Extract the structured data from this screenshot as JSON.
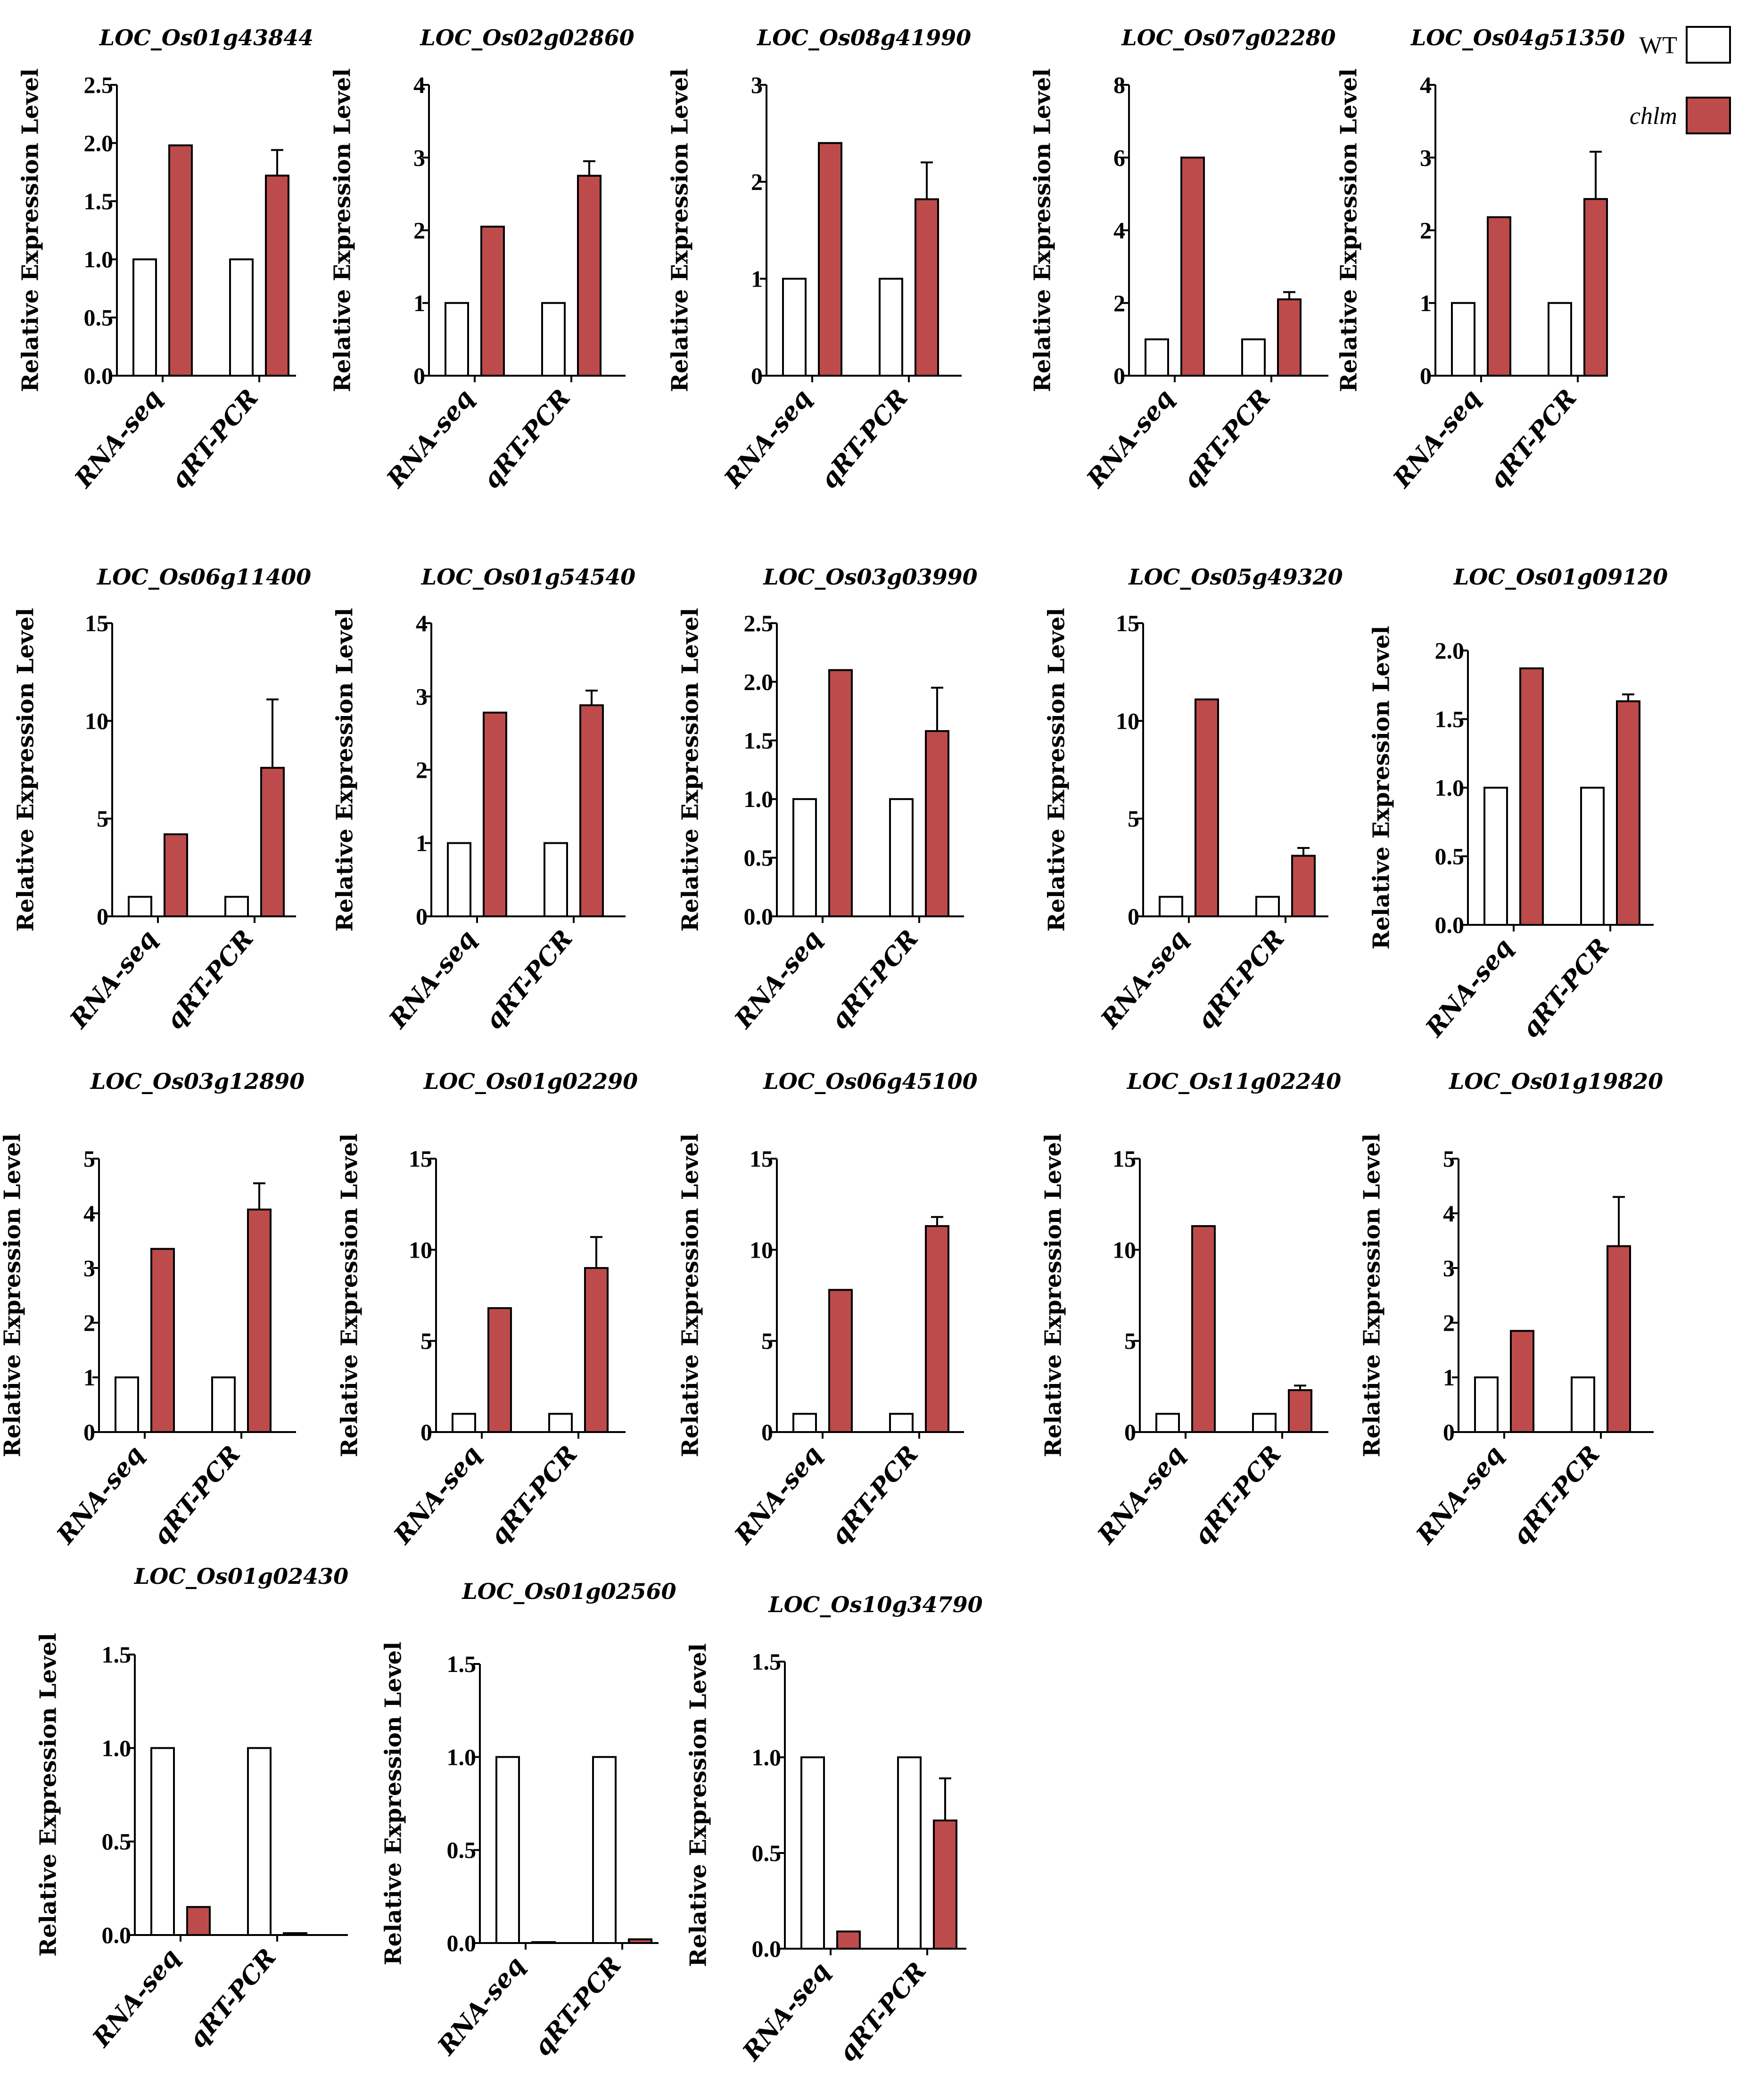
{
  "colors": {
    "wt": "#ffffff",
    "chlm": "#bd4b4b",
    "stroke": "#000000"
  },
  "legend": [
    {
      "label": "WT",
      "color": "#ffffff",
      "italic": false
    },
    {
      "label": "chlm",
      "color": "#bd4b4b",
      "italic": true
    }
  ],
  "chart_data": [
    {
      "type": "bar",
      "title": "LOC_Os01g43844",
      "ylabel": "Relative Expression Level",
      "categories": [
        "RNA-seq",
        "qRT-PCR"
      ],
      "ylim": [
        0,
        2.5
      ],
      "ytick_labels": [
        "0.0",
        "0.5",
        "1.0",
        "1.5",
        "2.0",
        "2.5"
      ],
      "series": [
        {
          "name": "WT",
          "values": [
            1.0,
            1.0
          ]
        },
        {
          "name": "chlm",
          "values": [
            1.98,
            1.72
          ],
          "errors": [
            0,
            0.22
          ]
        }
      ]
    },
    {
      "type": "bar",
      "title": "LOC_Os02g02860",
      "ylabel": "Relative Expression Level",
      "categories": [
        "RNA-seq",
        "qRT-PCR"
      ],
      "ylim": [
        0,
        4
      ],
      "ytick_labels": [
        "0",
        "1",
        "2",
        "3",
        "4"
      ],
      "series": [
        {
          "name": "WT",
          "values": [
            1.0,
            1.0
          ]
        },
        {
          "name": "chlm",
          "values": [
            2.05,
            2.75
          ],
          "errors": [
            0,
            0.2
          ]
        }
      ]
    },
    {
      "type": "bar",
      "title": "LOC_Os08g41990",
      "ylabel": "Relative Expression Level",
      "categories": [
        "RNA-seq",
        "qRT-PCR"
      ],
      "ylim": [
        0,
        3
      ],
      "ytick_labels": [
        "0",
        "1",
        "2",
        "3"
      ],
      "series": [
        {
          "name": "WT",
          "values": [
            1.0,
            1.0
          ]
        },
        {
          "name": "chlm",
          "values": [
            2.4,
            1.82
          ],
          "errors": [
            0,
            0.38
          ]
        }
      ]
    },
    {
      "type": "bar",
      "title": "LOC_Os07g02280",
      "ylabel": "Relative Expression Level",
      "categories": [
        "RNA-seq",
        "qRT-PCR"
      ],
      "ylim": [
        0,
        8
      ],
      "ytick_labels": [
        "0",
        "2",
        "4",
        "6",
        "8"
      ],
      "series": [
        {
          "name": "WT",
          "values": [
            1.0,
            1.0
          ]
        },
        {
          "name": "chlm",
          "values": [
            6.0,
            2.1
          ],
          "errors": [
            0,
            0.2
          ]
        }
      ]
    },
    {
      "type": "bar",
      "title": "LOC_Os04g51350",
      "ylabel": "Relative Expression Level",
      "categories": [
        "RNA-seq",
        "qRT-PCR"
      ],
      "ylim": [
        0,
        4
      ],
      "ytick_labels": [
        "0",
        "1",
        "2",
        "3",
        "4"
      ],
      "series": [
        {
          "name": "WT",
          "values": [
            1.0,
            1.0
          ]
        },
        {
          "name": "chlm",
          "values": [
            2.18,
            2.43
          ],
          "errors": [
            0,
            0.65
          ]
        }
      ]
    },
    {
      "type": "bar",
      "title": "LOC_Os06g11400",
      "ylabel": "Relative Expression Level",
      "categories": [
        "RNA-seq",
        "qRT-PCR"
      ],
      "ylim": [
        0,
        15
      ],
      "ytick_labels": [
        "0",
        "5",
        "10",
        "15"
      ],
      "series": [
        {
          "name": "WT",
          "values": [
            1.0,
            1.0
          ]
        },
        {
          "name": "chlm",
          "values": [
            4.2,
            7.6
          ],
          "errors": [
            0,
            3.5
          ]
        }
      ]
    },
    {
      "type": "bar",
      "title": "LOC_Os01g54540",
      "ylabel": "Relative Expression Level",
      "categories": [
        "RNA-seq",
        "qRT-PCR"
      ],
      "ylim": [
        0,
        4
      ],
      "ytick_labels": [
        "0",
        "1",
        "2",
        "3",
        "4"
      ],
      "series": [
        {
          "name": "WT",
          "values": [
            1.0,
            1.0
          ]
        },
        {
          "name": "chlm",
          "values": [
            2.78,
            2.88
          ],
          "errors": [
            0,
            0.2
          ]
        }
      ]
    },
    {
      "type": "bar",
      "title": "LOC_Os03g03990",
      "ylabel": "Relative Expression Level",
      "categories": [
        "RNA-seq",
        "qRT-PCR"
      ],
      "ylim": [
        0,
        2.5
      ],
      "ytick_labels": [
        "0.0",
        "0.5",
        "1.0",
        "1.5",
        "2.0",
        "2.5"
      ],
      "series": [
        {
          "name": "WT",
          "values": [
            1.0,
            1.0
          ]
        },
        {
          "name": "chlm",
          "values": [
            2.1,
            1.58
          ],
          "errors": [
            0,
            0.37
          ]
        }
      ]
    },
    {
      "type": "bar",
      "title": "LOC_Os05g49320",
      "ylabel": "Relative Expression Level",
      "categories": [
        "RNA-seq",
        "qRT-PCR"
      ],
      "ylim": [
        0,
        15
      ],
      "ytick_labels": [
        "0",
        "5",
        "10",
        "15"
      ],
      "series": [
        {
          "name": "WT",
          "values": [
            1.0,
            1.0
          ]
        },
        {
          "name": "chlm",
          "values": [
            11.1,
            3.1
          ],
          "errors": [
            0,
            0.4
          ]
        }
      ]
    },
    {
      "type": "bar",
      "title": "LOC_Os01g09120",
      "ylabel": "Relative Expression Level",
      "categories": [
        "RNA-seq",
        "qRT-PCR"
      ],
      "ylim": [
        0,
        2.0
      ],
      "ytick_labels": [
        "0.0",
        "0.5",
        "1.0",
        "1.5",
        "2.0"
      ],
      "series": [
        {
          "name": "WT",
          "values": [
            1.0,
            1.0
          ]
        },
        {
          "name": "chlm",
          "values": [
            1.87,
            1.63
          ],
          "errors": [
            0,
            0.05
          ]
        }
      ]
    },
    {
      "type": "bar",
      "title": "LOC_Os03g12890",
      "ylabel": "Relative Expression Level",
      "categories": [
        "RNA-seq",
        "qRT-PCR"
      ],
      "ylim": [
        0,
        5
      ],
      "ytick_labels": [
        "0",
        "1",
        "2",
        "3",
        "4",
        "5"
      ],
      "series": [
        {
          "name": "WT",
          "values": [
            1.0,
            1.0
          ]
        },
        {
          "name": "chlm",
          "values": [
            3.35,
            4.07
          ],
          "errors": [
            0,
            0.48
          ]
        }
      ]
    },
    {
      "type": "bar",
      "title": "LOC_Os01g02290",
      "ylabel": "Relative Expression Level",
      "categories": [
        "RNA-seq",
        "qRT-PCR"
      ],
      "ylim": [
        0,
        15
      ],
      "ytick_labels": [
        "0",
        "5",
        "10",
        "15"
      ],
      "series": [
        {
          "name": "WT",
          "values": [
            1.0,
            1.0
          ]
        },
        {
          "name": "chlm",
          "values": [
            6.8,
            9.0
          ],
          "errors": [
            0,
            1.7
          ]
        }
      ]
    },
    {
      "type": "bar",
      "title": "LOC_Os06g45100",
      "ylabel": "Relative Expression Level",
      "categories": [
        "RNA-seq",
        "qRT-PCR"
      ],
      "ylim": [
        0,
        15
      ],
      "ytick_labels": [
        "0",
        "5",
        "10",
        "15"
      ],
      "series": [
        {
          "name": "WT",
          "values": [
            1.0,
            1.0
          ]
        },
        {
          "name": "chlm",
          "values": [
            7.8,
            11.3
          ],
          "errors": [
            0,
            0.5
          ]
        }
      ]
    },
    {
      "type": "bar",
      "title": "LOC_Os11g02240",
      "ylabel": "Relative Expression Level",
      "categories": [
        "RNA-seq",
        "qRT-PCR"
      ],
      "ylim": [
        0,
        15
      ],
      "ytick_labels": [
        "0",
        "5",
        "10",
        "15"
      ],
      "series": [
        {
          "name": "WT",
          "values": [
            1.0,
            1.0
          ]
        },
        {
          "name": "chlm",
          "values": [
            11.3,
            2.3
          ],
          "errors": [
            0,
            0.25
          ]
        }
      ]
    },
    {
      "type": "bar",
      "title": "LOC_Os01g19820",
      "ylabel": "Relative Expression Level",
      "categories": [
        "RNA-seq",
        "qRT-PCR"
      ],
      "ylim": [
        0,
        5
      ],
      "ytick_labels": [
        "0",
        "1",
        "2",
        "3",
        "4",
        "5"
      ],
      "series": [
        {
          "name": "WT",
          "values": [
            1.0,
            1.0
          ]
        },
        {
          "name": "chlm",
          "values": [
            1.85,
            3.4
          ],
          "errors": [
            0,
            0.9
          ]
        }
      ]
    },
    {
      "type": "bar",
      "title": "LOC_Os01g02430",
      "ylabel": "Relative Expression Level",
      "categories": [
        "RNA-seq",
        "qRT-PCR"
      ],
      "ylim": [
        0,
        1.5
      ],
      "ytick_labels": [
        "0.0",
        "0.5",
        "1.0",
        "1.5"
      ],
      "series": [
        {
          "name": "WT",
          "values": [
            1.0,
            1.0
          ]
        },
        {
          "name": "chlm",
          "values": [
            0.15,
            0.01
          ],
          "errors": [
            0,
            0
          ]
        }
      ]
    },
    {
      "type": "bar",
      "title": "LOC_Os01g02560",
      "ylabel": "Relative Expression Level",
      "categories": [
        "RNA-seq",
        "qRT-PCR"
      ],
      "ylim": [
        0,
        1.5
      ],
      "ytick_labels": [
        "0.0",
        "0.5",
        "1.0",
        "1.5"
      ],
      "series": [
        {
          "name": "WT",
          "values": [
            1.0,
            1.0
          ]
        },
        {
          "name": "chlm",
          "values": [
            0.005,
            0.02
          ],
          "errors": [
            0,
            0
          ]
        }
      ]
    },
    {
      "type": "bar",
      "title": "LOC_Os10g34790",
      "ylabel": "Relative Expression Level",
      "categories": [
        "RNA-seq",
        "qRT-PCR"
      ],
      "ylim": [
        0,
        1.5
      ],
      "ytick_labels": [
        "0.0",
        "0.5",
        "1.0",
        "1.5"
      ],
      "series": [
        {
          "name": "WT",
          "values": [
            1.0,
            1.0
          ]
        },
        {
          "name": "chlm",
          "values": [
            0.09,
            0.67
          ],
          "errors": [
            0,
            0.22
          ]
        }
      ]
    }
  ]
}
